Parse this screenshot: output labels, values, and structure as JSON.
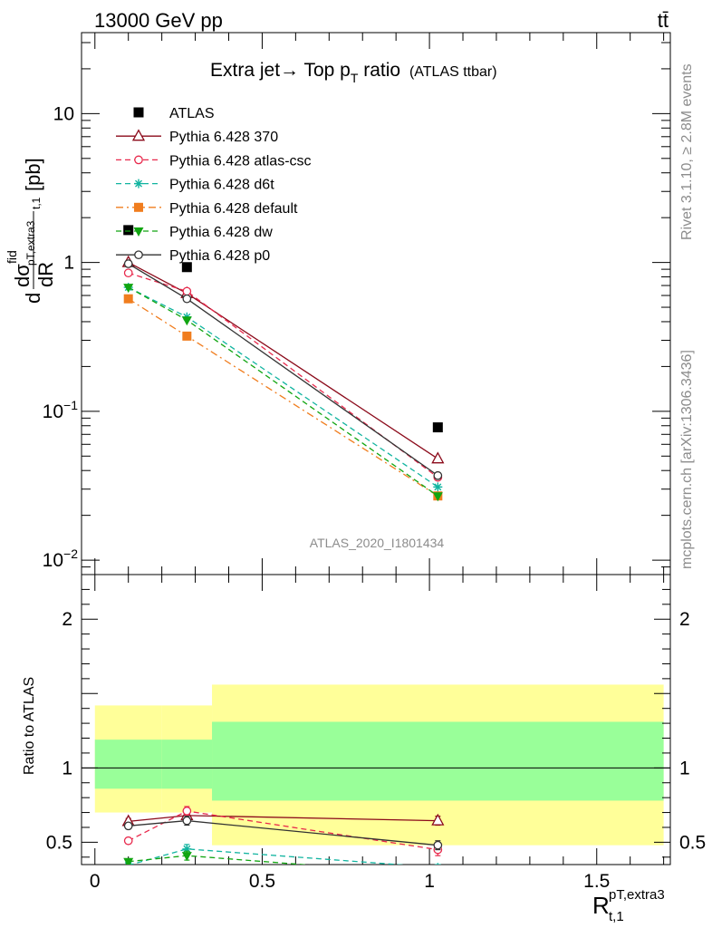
{
  "header": {
    "left": "13000 GeV pp",
    "right": "tt̄"
  },
  "side_labels": {
    "rivet": "Rivet 3.1.10, ≥ 2.8M events",
    "mcplots": "mcplots.cern.ch [arXiv:1306.3436]"
  },
  "watermark": "ATLAS_2020_I1801434",
  "chart_data": [
    {
      "type": "line",
      "title": "Extra jet→ Top p_T ratio",
      "title_main": "Extra jet→ Top p",
      "title_sub": "T",
      "title_tail": " ratio",
      "title_note": "(ATLAS ttbar)",
      "ylabel": "dσ^fid/dR^{pT,extra3}_{t,1} [pb]",
      "yscale": "log",
      "ylim": [
        0.008,
        35
      ],
      "xlim": [
        -0.04,
        1.72
      ],
      "ytick_labels": [
        "10",
        "1",
        "10^-1",
        "10^-2"
      ],
      "legend_position": "upper-left",
      "series": [
        {
          "name": "ATLAS",
          "color": "#000000",
          "style": "markers",
          "marker": "square",
          "x": [
            0.1,
            0.275,
            1.025
          ],
          "y": [
            1.65,
            0.93,
            0.078
          ]
        },
        {
          "name": "Pythia 6.428 370",
          "color": "#8b0a1a",
          "style": "solid",
          "marker": "triangle",
          "x": [
            0.1,
            0.275,
            1.025
          ],
          "y": [
            1.0,
            0.62,
            0.048
          ]
        },
        {
          "name": "Pythia 6.428 atlas-csc",
          "color": "#e8294c",
          "style": "dashed",
          "marker": "circle",
          "x": [
            0.1,
            0.275,
            1.025
          ],
          "y": [
            0.85,
            0.64,
            0.036
          ]
        },
        {
          "name": "Pythia 6.428 d6t",
          "color": "#11b4a0",
          "style": "dashed",
          "marker": "star",
          "x": [
            0.1,
            0.275,
            1.025
          ],
          "y": [
            0.68,
            0.43,
            0.031
          ]
        },
        {
          "name": "Pythia 6.428 default",
          "color": "#f07d1e",
          "style": "dashdot",
          "marker": "square",
          "x": [
            0.1,
            0.275,
            1.025
          ],
          "y": [
            0.57,
            0.32,
            0.027
          ]
        },
        {
          "name": "Pythia 6.428 dw",
          "color": "#11a511",
          "style": "dashed",
          "marker": "triangle-down",
          "x": [
            0.1,
            0.275,
            1.025
          ],
          "y": [
            0.68,
            0.41,
            0.027
          ]
        },
        {
          "name": "Pythia 6.428 p0",
          "color": "#333333",
          "style": "solid",
          "marker": "circle",
          "x": [
            0.1,
            0.275,
            1.025
          ],
          "y": [
            0.98,
            0.57,
            0.037
          ]
        }
      ]
    },
    {
      "type": "line",
      "ylabel": "Ratio to ATLAS",
      "xlabel": "R^{pT,extra3}_{t,1}",
      "xlabel_main": "R",
      "xlabel_sup": "pT,extra3",
      "xlabel_sub": "t,1",
      "ylim": [
        0.35,
        2.3
      ],
      "xlim": [
        -0.04,
        1.72
      ],
      "yticks": [
        0.5,
        1,
        2
      ],
      "ytick_labels": [
        "0.5",
        "1",
        "2"
      ],
      "xticks": [
        0,
        0.5,
        1,
        1.5
      ],
      "xtick_labels": [
        "0",
        "0.5",
        "1",
        "1.5"
      ],
      "bands": [
        {
          "x0": 0.0,
          "x1": 0.2,
          "yellow": [
            0.7,
            1.42
          ],
          "green": [
            0.86,
            1.19
          ]
        },
        {
          "x0": 0.2,
          "x1": 0.35,
          "yellow": [
            0.7,
            1.42
          ],
          "green": [
            0.86,
            1.19
          ]
        },
        {
          "x0": 0.35,
          "x1": 1.7,
          "yellow": [
            0.48,
            1.56
          ],
          "green": [
            0.78,
            1.31
          ]
        }
      ],
      "series": [
        {
          "name": "Pythia 6.428 370",
          "color": "#8b0a1a",
          "style": "solid",
          "marker": "triangle",
          "x": [
            0.1,
            0.275,
            1.025
          ],
          "y": [
            0.64,
            0.68,
            0.645
          ],
          "err": [
            0.02,
            0.03,
            0.03
          ]
        },
        {
          "name": "Pythia 6.428 atlas-csc",
          "color": "#e8294c",
          "style": "dashed",
          "marker": "circle",
          "x": [
            0.1,
            0.275,
            1.025
          ],
          "y": [
            0.51,
            0.71,
            0.45
          ],
          "err": [
            0.02,
            0.03,
            0.04
          ]
        },
        {
          "name": "Pythia 6.428 d6t",
          "color": "#11b4a0",
          "style": "dashed",
          "marker": "star",
          "x": [
            0.1,
            0.275,
            1.025
          ],
          "y": [
            0.345,
            0.455,
            0.33
          ],
          "err": [
            0.015,
            0.03,
            0.02
          ]
        },
        {
          "name": "Pythia 6.428 dw",
          "color": "#11a511",
          "style": "dashed",
          "marker": "triangle-down",
          "x": [
            0.1,
            0.275,
            1.025
          ],
          "y": [
            0.37,
            0.41,
            0.28
          ],
          "err": [
            0.015,
            0.03,
            0.02
          ]
        },
        {
          "name": "Pythia 6.428 p0",
          "color": "#333333",
          "style": "solid",
          "marker": "circle",
          "x": [
            0.1,
            0.275,
            1.025
          ],
          "y": [
            0.61,
            0.645,
            0.48
          ],
          "err": [
            0.02,
            0.03,
            0.03
          ]
        }
      ]
    }
  ]
}
